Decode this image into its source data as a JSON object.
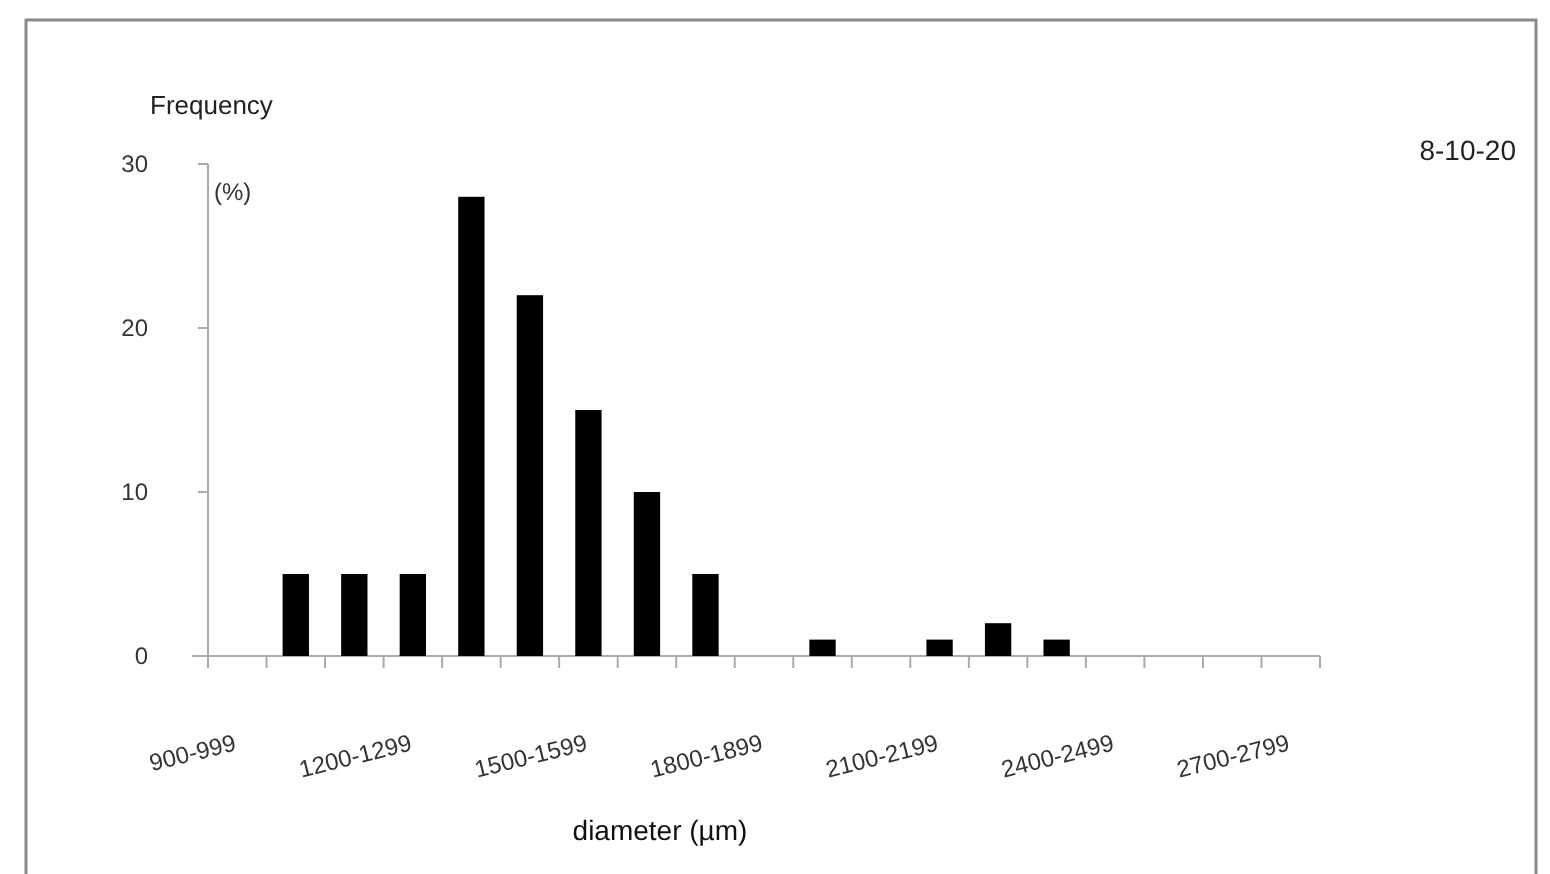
{
  "chart_data": {
    "type": "bar",
    "ylabel": "Frequency",
    "xlabel": "diameter (µm)",
    "annotations": [
      "(%)",
      "8-10-20"
    ],
    "categories": [
      "900-999",
      null,
      null,
      "1200-1299",
      null,
      null,
      "1500-1599",
      null,
      null,
      "1800-1899",
      null,
      null,
      "2100-2199",
      null,
      null,
      "2400-2499",
      null,
      null,
      "2700-2799"
    ],
    "values": [
      0,
      5,
      5,
      5,
      28,
      22,
      15,
      10,
      5,
      0,
      1,
      0,
      1,
      2,
      1,
      0,
      0,
      0,
      0
    ],
    "color": "#000000",
    "ylim": [
      0,
      30
    ],
    "yticks": [
      0,
      10,
      20,
      30
    ]
  }
}
